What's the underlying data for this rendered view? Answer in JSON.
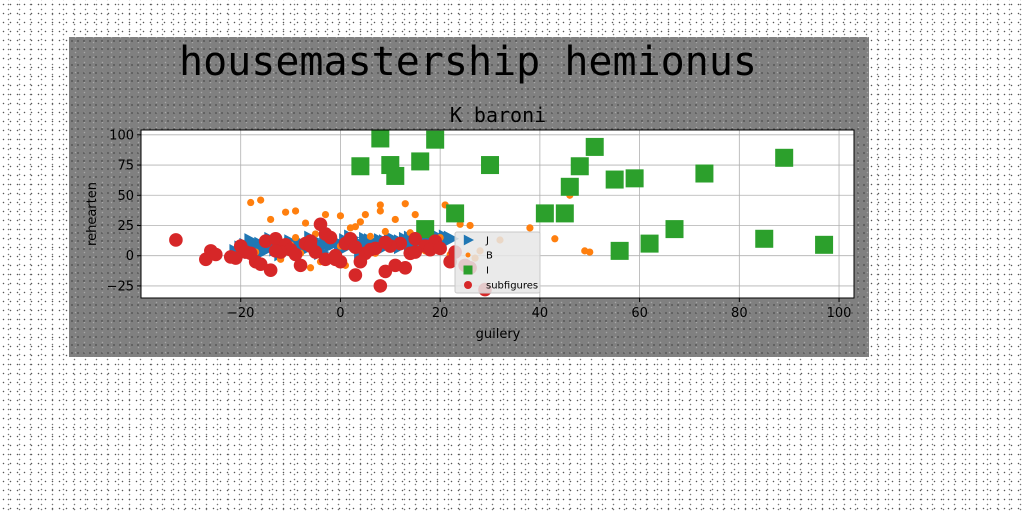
{
  "figure_title": "housemastership hemionus",
  "chart_data": {
    "type": "scatter",
    "title": "K baroni",
    "xlabel": "guilery",
    "ylabel": "rehearten",
    "xlim": [
      -40,
      103
    ],
    "ylim": [
      -35,
      104
    ],
    "xticks": [
      -20,
      0,
      20,
      40,
      60,
      80,
      100
    ],
    "xtick_labels": [
      "−20",
      "0",
      "20",
      "40",
      "60",
      "80",
      "100"
    ],
    "yticks": [
      -25,
      0,
      25,
      50,
      75,
      100
    ],
    "ytick_labels": [
      "−25",
      "0",
      "25",
      "50",
      "75",
      "100"
    ],
    "grid": true,
    "legend_position": "center",
    "series": [
      {
        "name": "J",
        "marker": "triangle-right",
        "color": "#1f77b4",
        "x": [
          -21,
          -20,
          -19,
          -18,
          -17,
          -16,
          -15,
          -14,
          -13,
          -12,
          -11,
          -10,
          -9,
          -8,
          -7,
          -6,
          -5,
          -4,
          -3,
          -2,
          -1,
          0,
          1,
          2,
          3,
          4,
          5,
          6,
          7,
          8,
          9,
          10,
          11,
          12,
          13,
          14,
          15,
          16,
          17,
          18,
          19,
          20,
          21,
          22,
          -20,
          -16,
          -12,
          -8,
          -4,
          0,
          4,
          8,
          12,
          16,
          -18,
          -14,
          -10,
          -6,
          -2,
          2,
          6,
          10,
          14,
          18
        ],
        "y": [
          3,
          6,
          8,
          4,
          7,
          9,
          5,
          8,
          6,
          10,
          7,
          9,
          8,
          10,
          6,
          9,
          11,
          8,
          10,
          9,
          11,
          9,
          12,
          10,
          11,
          9,
          13,
          11,
          10,
          12,
          11,
          13,
          12,
          11,
          13,
          14,
          12,
          13,
          14,
          13,
          15,
          14,
          15,
          14,
          1,
          3,
          2,
          4,
          3,
          5,
          4,
          6,
          8,
          10,
          12,
          13,
          11,
          14,
          13,
          15,
          12,
          14,
          9,
          11
        ]
      },
      {
        "name": "B",
        "marker": "circle",
        "color": "#ff7f0e",
        "x": [
          -18,
          -16,
          -14,
          -11,
          -9,
          -7,
          -13,
          -12,
          -6,
          -3,
          0,
          2,
          4,
          5,
          8,
          8,
          11,
          13,
          15,
          18,
          21,
          26,
          32,
          38,
          43,
          46,
          49,
          50,
          -15,
          -10,
          -8,
          -5,
          -2,
          0,
          3,
          6,
          9,
          12,
          16,
          20,
          24,
          28,
          -17,
          -12,
          -4,
          1,
          7,
          10,
          14,
          22,
          27,
          -9,
          3,
          17
        ],
        "y": [
          44,
          46,
          30,
          36,
          37,
          27,
          4,
          -3,
          -10,
          34,
          33,
          23,
          28,
          34,
          37,
          42,
          30,
          43,
          34,
          22,
          42,
          25,
          13,
          23,
          14,
          50,
          4,
          3,
          12,
          9,
          2,
          18,
          14,
          8,
          6,
          16,
          20,
          10,
          6,
          15,
          26,
          4,
          3,
          -2,
          -5,
          -8,
          2,
          8,
          19,
          1,
          -2,
          15,
          24,
          4
        ]
      },
      {
        "name": "I",
        "marker": "square",
        "color": "#2ca02c",
        "x": [
          8,
          10,
          19,
          4,
          11,
          16,
          30,
          23,
          17,
          41,
          45,
          46,
          48,
          51,
          55,
          56,
          59,
          62,
          67,
          73,
          85,
          89,
          97
        ],
        "y": [
          97,
          75,
          96,
          74,
          66,
          78,
          75,
          35,
          22,
          35,
          35,
          57,
          74,
          90,
          63,
          4,
          64,
          10,
          22,
          68,
          14,
          81,
          9
        ]
      },
      {
        "name": "subfigures",
        "marker": "circle",
        "color": "#d62728",
        "x": [
          -33,
          -26,
          -27,
          -20,
          -17,
          -15,
          -13,
          -11,
          -10,
          -8,
          -6,
          -5,
          -4,
          -3,
          -2,
          -1,
          0,
          1,
          3,
          5,
          7,
          9,
          12,
          15,
          17,
          19,
          23,
          25,
          29,
          -22,
          -19,
          -16,
          -14,
          -12,
          -9,
          -7,
          2,
          4,
          6,
          8,
          10,
          13,
          18,
          -25,
          -18,
          -3,
          11,
          20,
          26,
          -13,
          3,
          14,
          22,
          -1,
          9,
          15,
          -21,
          -6
        ],
        "y": [
          13,
          4,
          -3,
          8,
          -5,
          12,
          14,
          9,
          5,
          -8,
          12,
          3,
          26,
          18,
          15,
          -3,
          -5,
          10,
          -16,
          2,
          6,
          -13,
          10,
          14,
          8,
          12,
          3,
          -8,
          -28,
          -1,
          3,
          -7,
          -12,
          3,
          1,
          10,
          14,
          -5,
          5,
          -25,
          8,
          -10,
          5,
          1,
          2,
          -3,
          -8,
          6,
          -10,
          4,
          7,
          2,
          -5,
          0,
          11,
          3,
          -2,
          8
        ]
      }
    ]
  }
}
